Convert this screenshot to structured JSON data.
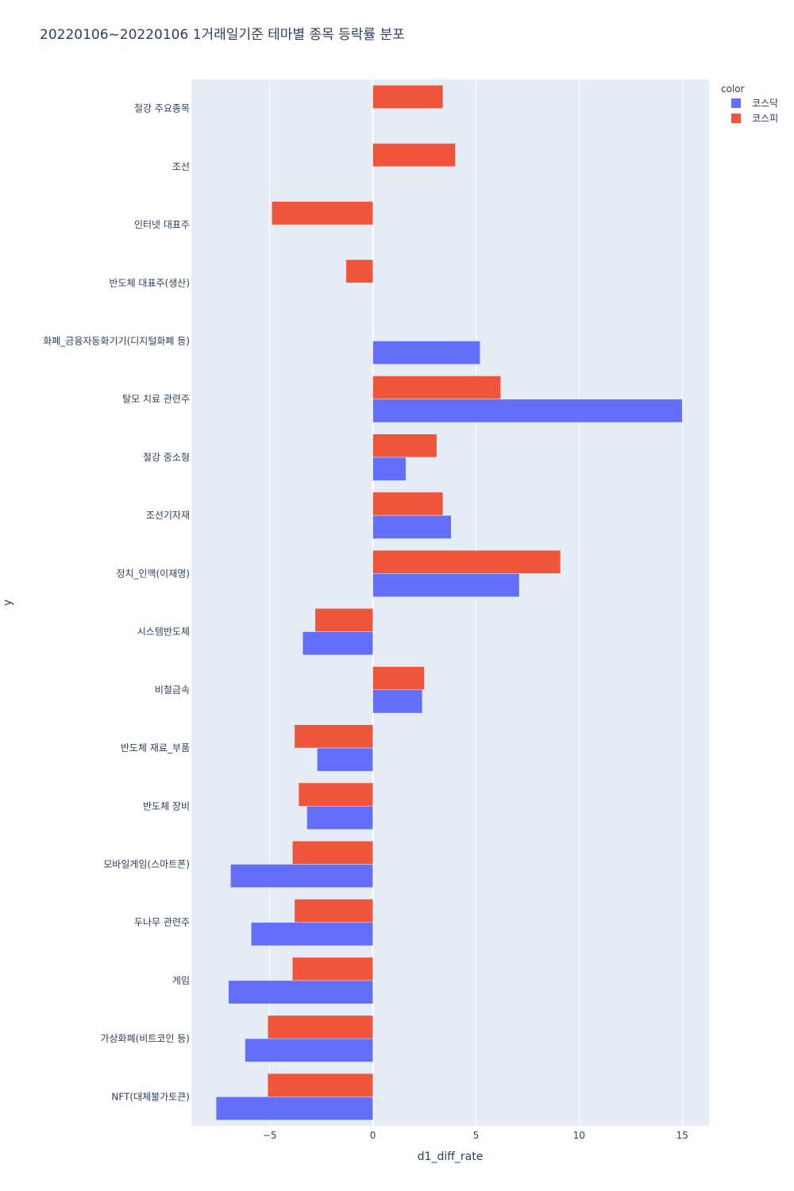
{
  "chart_data": {
    "type": "bar",
    "orientation": "horizontal",
    "title": "20220106~20220106 1거래일기준 테마별 종목 등락률 분포",
    "xlabel": "d1_diff_rate",
    "ylabel": "y",
    "xlim": [
      -8.8,
      16.3
    ],
    "x_ticks": [
      -5,
      0,
      5,
      10,
      15
    ],
    "x_tick_labels": [
      "−5",
      "0",
      "5",
      "10",
      "15"
    ],
    "grid": true,
    "legend": {
      "title": "color",
      "position": "top-right"
    },
    "categories": [
      "철강 주요종목",
      "조선",
      "인터넷 대표주",
      "반도체 대표주(생산)",
      "화폐_금융자동화기기(디지털화폐 등)",
      "탈모 치료 관련주",
      "철강 중소형",
      "조선기자재",
      "정치_인맥(이재명)",
      "시스템반도체",
      "비철금속",
      "반도체 재료_부품",
      "반도체 장비",
      "모바일게임(스마트폰)",
      "두나무 관련주",
      "게임",
      "가상화폐(비트코인 등)",
      "NFT(대체불가토큰)"
    ],
    "series": [
      {
        "name": "코스닥",
        "color": "#636efa",
        "values": [
          null,
          null,
          null,
          null,
          5.2,
          15.0,
          1.6,
          3.8,
          7.1,
          -3.4,
          2.4,
          -2.7,
          -3.2,
          -6.9,
          -5.9,
          -7.0,
          -6.2,
          -7.6
        ]
      },
      {
        "name": "코스피",
        "color": "#ef553b",
        "values": [
          3.4,
          4.0,
          -4.9,
          -1.3,
          null,
          6.2,
          3.1,
          3.4,
          9.1,
          -2.8,
          2.5,
          -3.8,
          -3.6,
          -3.9,
          -3.8,
          -3.9,
          -5.1,
          -5.1
        ]
      }
    ]
  },
  "colors": {
    "plot_bg": "#e5ecf6",
    "grid": "#ffffff",
    "text": "#2a3f5f"
  }
}
